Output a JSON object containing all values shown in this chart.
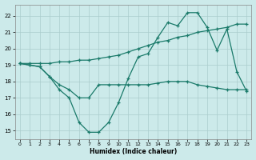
{
  "xlabel": "Humidex (Indice chaleur)",
  "background_color": "#cceaea",
  "grid_color": "#aacccc",
  "line_color": "#1a7a6a",
  "xlim": [
    -0.5,
    23.5
  ],
  "ylim": [
    14.5,
    22.7
  ],
  "xticks": [
    0,
    1,
    2,
    3,
    4,
    5,
    6,
    7,
    8,
    9,
    10,
    11,
    12,
    13,
    14,
    15,
    16,
    17,
    18,
    19,
    20,
    21,
    22,
    23
  ],
  "yticks": [
    15,
    16,
    17,
    18,
    19,
    20,
    21,
    22
  ],
  "series": [
    {
      "x": [
        0,
        1,
        2,
        3,
        4,
        5,
        6,
        7,
        8,
        9,
        10,
        11,
        12,
        13,
        14,
        15,
        16,
        17,
        18,
        19,
        20,
        21,
        22,
        23
      ],
      "y": [
        19.1,
        19.0,
        18.9,
        18.3,
        17.5,
        17.0,
        15.5,
        14.9,
        14.9,
        15.5,
        16.7,
        18.2,
        19.5,
        19.7,
        20.7,
        21.6,
        21.4,
        22.2,
        22.2,
        21.3,
        19.9,
        21.2,
        18.6,
        17.4
      ]
    },
    {
      "x": [
        0,
        1,
        2,
        3,
        4,
        5,
        6,
        7,
        8,
        9,
        10,
        11,
        12,
        13,
        14,
        15,
        16,
        17,
        18,
        19,
        20,
        21,
        22,
        23
      ],
      "y": [
        19.1,
        19.1,
        19.1,
        19.1,
        19.2,
        19.2,
        19.3,
        19.3,
        19.4,
        19.5,
        19.6,
        19.8,
        20.0,
        20.2,
        20.4,
        20.5,
        20.7,
        20.8,
        21.0,
        21.1,
        21.2,
        21.3,
        21.5,
        21.5
      ]
    },
    {
      "x": [
        0,
        1,
        2,
        3,
        4,
        5,
        6,
        7,
        8,
        9,
        10,
        11,
        12,
        13,
        14,
        15,
        16,
        17,
        18,
        19,
        20,
        21,
        22,
        23
      ],
      "y": [
        19.1,
        19.0,
        18.9,
        18.3,
        17.8,
        17.5,
        17.0,
        17.0,
        17.8,
        17.8,
        17.8,
        17.8,
        17.8,
        17.8,
        17.9,
        18.0,
        18.0,
        18.0,
        17.8,
        17.7,
        17.6,
        17.5,
        17.5,
        17.5
      ]
    }
  ]
}
